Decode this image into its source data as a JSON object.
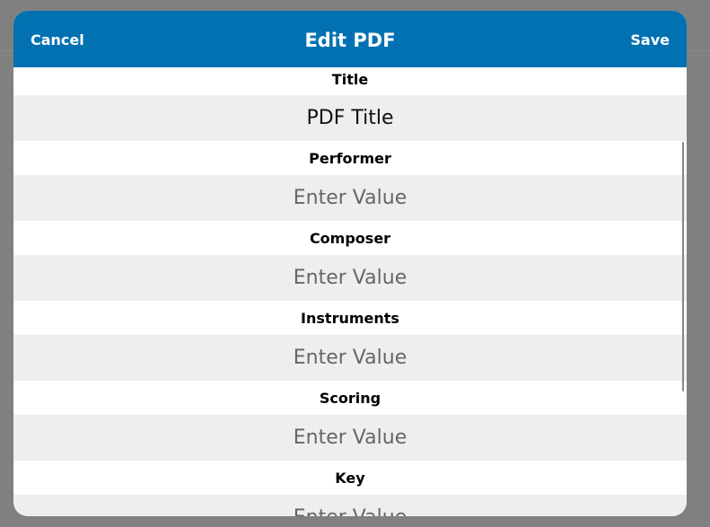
{
  "header": {
    "title": "Edit PDF",
    "cancel_label": "Cancel",
    "save_label": "Save",
    "color": "#0271b2"
  },
  "fields": [
    {
      "label": "Title",
      "value": "PDF Title",
      "placeholder": "Enter Value"
    },
    {
      "label": "Performer",
      "value": "",
      "placeholder": "Enter Value"
    },
    {
      "label": "Composer",
      "value": "",
      "placeholder": "Enter Value"
    },
    {
      "label": "Instruments",
      "value": "",
      "placeholder": "Enter Value"
    },
    {
      "label": "Scoring",
      "value": "",
      "placeholder": "Enter Value"
    },
    {
      "label": "Key",
      "value": "",
      "placeholder": "Enter Value"
    }
  ]
}
